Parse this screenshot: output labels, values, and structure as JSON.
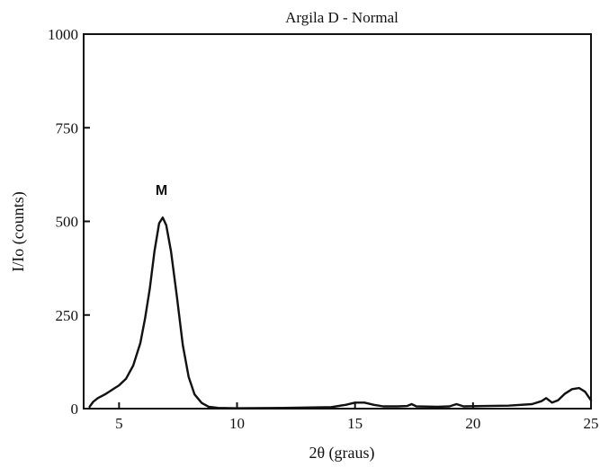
{
  "chart_data": {
    "type": "line",
    "title": "Argila D - Normal",
    "xlabel": "2θ (graus)",
    "ylabel": "I/Io (counts)",
    "xlim": [
      3.5,
      25
    ],
    "ylim": [
      0,
      1000
    ],
    "x_ticks": [
      5,
      10,
      15,
      20,
      25
    ],
    "y_ticks": [
      0,
      250,
      500,
      750,
      1000
    ],
    "grid": false,
    "annotations": [
      {
        "text": "M",
        "x": 6.8,
        "y": 585
      }
    ],
    "series": [
      {
        "points": [
          [
            3.75,
            5
          ],
          [
            3.9,
            18
          ],
          [
            4.1,
            28
          ],
          [
            4.4,
            38
          ],
          [
            4.7,
            50
          ],
          [
            5.0,
            62
          ],
          [
            5.3,
            80
          ],
          [
            5.6,
            115
          ],
          [
            5.9,
            175
          ],
          [
            6.1,
            240
          ],
          [
            6.3,
            320
          ],
          [
            6.5,
            420
          ],
          [
            6.7,
            495
          ],
          [
            6.85,
            510
          ],
          [
            7.0,
            490
          ],
          [
            7.2,
            420
          ],
          [
            7.45,
            300
          ],
          [
            7.7,
            170
          ],
          [
            7.95,
            85
          ],
          [
            8.2,
            38
          ],
          [
            8.5,
            15
          ],
          [
            8.8,
            5
          ],
          [
            9.2,
            2
          ],
          [
            10,
            1
          ],
          [
            12,
            2
          ],
          [
            14,
            4
          ],
          [
            14.6,
            10
          ],
          [
            15.0,
            16
          ],
          [
            15.4,
            16
          ],
          [
            15.8,
            10
          ],
          [
            16.2,
            6
          ],
          [
            16.8,
            6
          ],
          [
            17.2,
            7
          ],
          [
            17.4,
            12
          ],
          [
            17.6,
            6
          ],
          [
            18.5,
            5
          ],
          [
            19.0,
            6
          ],
          [
            19.3,
            12
          ],
          [
            19.6,
            6
          ],
          [
            20.5,
            7
          ],
          [
            21.5,
            8
          ],
          [
            22.5,
            12
          ],
          [
            22.9,
            20
          ],
          [
            23.1,
            28
          ],
          [
            23.35,
            16
          ],
          [
            23.6,
            22
          ],
          [
            23.9,
            40
          ],
          [
            24.2,
            52
          ],
          [
            24.5,
            55
          ],
          [
            24.75,
            45
          ],
          [
            25,
            22
          ]
        ]
      }
    ]
  }
}
